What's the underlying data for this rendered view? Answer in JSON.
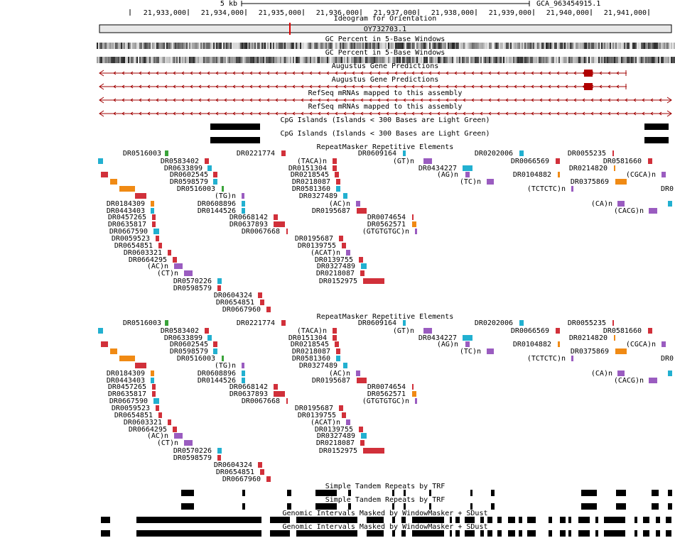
{
  "ruler": {
    "scale": "5 kb",
    "assembly": "GCA_963454915.1",
    "positions": [
      "21,933,000",
      "21,934,000",
      "21,935,000",
      "21,936,000",
      "21,937,000",
      "21,938,000",
      "21,939,000",
      "21,940,000",
      "21,941,000"
    ]
  },
  "tracks": {
    "ideogram": {
      "title": "Ideogram for Orientation",
      "chrom": "OY732703.1"
    },
    "gc": "GC Percent in 5-Base Windows",
    "augustus": "Augustus Gene Predictions",
    "refseq": "RefSeq mRNAs mapped to this assembly",
    "cpg": "CpG Islands (Islands < 300 Bases are Light Green)",
    "repeatmasker": {
      "title": "RepeatMasker Repetitive Elements",
      "labels": [
        "DR0516003",
        "DR0583402",
        "DR0633899",
        "DR0602545",
        "DR0598579",
        "DR0516003",
        "(TG)n",
        "DR0184309",
        "DR0608896",
        "DR0443403",
        "DR0144526",
        "DR0457265",
        "DR0668142",
        "DR0635817",
        "DR0637893",
        "DR0667590",
        "DR0067668",
        "DR0059523",
        "DR0654851",
        "DR0603321",
        "DR0664295",
        "(AC)n",
        "(CT)n",
        "DR0570226",
        "DR0598579",
        "DR0604324",
        "DR0654851",
        "DR0667960",
        "DR0221774",
        "(TACA)n",
        "DR0151304",
        "DR0218545",
        "DR0218087",
        "DR0581360",
        "DR0327489",
        "(AC)n",
        "DR0195687",
        "DR0074654",
        "DR0562571",
        "(GTGTGTGC)n",
        "DR0195687",
        "DR0139755",
        "(ACAT)n",
        "DR0139755",
        "DR0327489",
        "DR0218087",
        "DR0152975",
        "DR0609164",
        "(GT)n",
        "DR0434227",
        "(AG)n",
        "(TC)n",
        "DR0202006",
        "DR0066569",
        "DR0104882",
        "(TCTCTC)n",
        "DR0055235",
        "DR0214820",
        "DR0375869",
        "(CA)n",
        "DR0581660",
        "(CGCA)n",
        "DR0",
        "(CACG)n"
      ]
    },
    "trf": "Simple Tandem Repeats by TRF",
    "windowmasker": "Genomic Intervals Masked by WindowMasker + SDust"
  }
}
